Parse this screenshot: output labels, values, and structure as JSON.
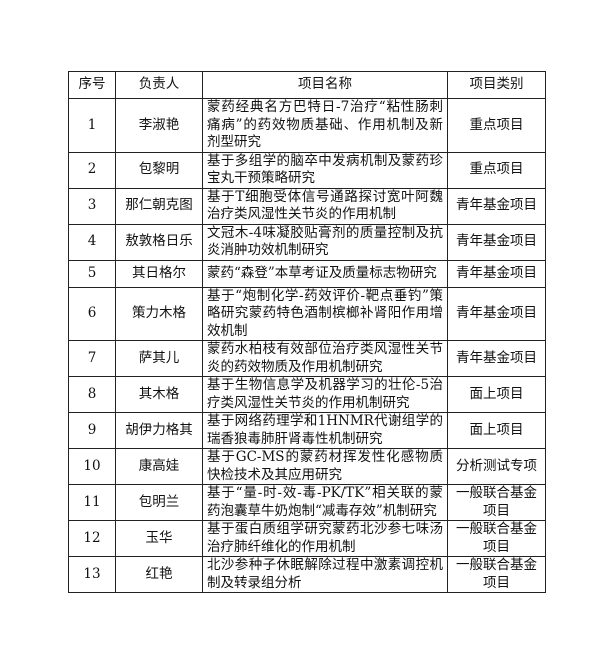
{
  "table": {
    "headers": [
      "序号",
      "负责人",
      "项目名称",
      "项目类别"
    ],
    "rows": [
      {
        "no": "1",
        "leader": "李淑艳",
        "name": "蒙药经典名方巴特日-7治疗“粘性肠刺痛病”的药效物质基础、作用机制及新剂型研究",
        "category": "重点项目"
      },
      {
        "no": "2",
        "leader": "包黎明",
        "name": "基于多组学的脑卒中发病机制及蒙药珍宝丸干预策略研究",
        "category": "重点项目"
      },
      {
        "no": "3",
        "leader": "那仁朝克图",
        "name": "基于T细胞受体信号通路探讨宽叶阿魏治疗类风湿性关节炎的作用机制",
        "category": "青年基金项目"
      },
      {
        "no": "4",
        "leader": "敖敦格日乐",
        "name": "文冠木-4味凝胶贴膏剂的质量控制及抗炎消肿功效机制研究",
        "category": "青年基金项目"
      },
      {
        "no": "5",
        "leader": "其日格尔",
        "name": "蒙药“森登”本草考证及质量标志物研究",
        "category": "青年基金项目"
      },
      {
        "no": "6",
        "leader": "策力木格",
        "name": "基于“炮制化学-药效评价-靶点垂钓”策略研究蒙药特色酒制槟榔补肾阳作用增效机制",
        "category": "青年基金项目"
      },
      {
        "no": "7",
        "leader": "萨其儿",
        "name": "蒙药水柏枝有效部位治疗类风湿性关节炎的药效物质及作用机制研究",
        "category": "青年基金项目"
      },
      {
        "no": "8",
        "leader": "其木格",
        "name": "基于生物信息学及机器学习的壮伦-5治疗类风湿性关节炎的作用机制研究",
        "category": "面上项目"
      },
      {
        "no": "9",
        "leader": "胡伊力格其",
        "name": "基于网络药理学和1HNMR代谢组学的瑞香狼毒肺肝肾毒性机制研究",
        "category": "面上项目"
      },
      {
        "no": "10",
        "leader": "康高娃",
        "name": "基于GC-MS的蒙药材挥发性化感物质快检技术及其应用研究",
        "category": "分析测试专项"
      },
      {
        "no": "11",
        "leader": "包明兰",
        "name": "基于“量-时-效-毒-PK/TK”相关联的蒙药泡囊草牛奶炮制“减毒存效”机制研究",
        "category": "一般联合基金项目"
      },
      {
        "no": "12",
        "leader": "玉华",
        "name": "基于蛋白质组学研究蒙药北沙参七味汤治疗肺纤维化的作用机制",
        "category": "一般联合基金项目"
      },
      {
        "no": "13",
        "leader": "红艳",
        "name": "北沙参种子休眠解除过程中激素调控机制及转录组分析",
        "category": "一般联合基金项目"
      }
    ]
  }
}
